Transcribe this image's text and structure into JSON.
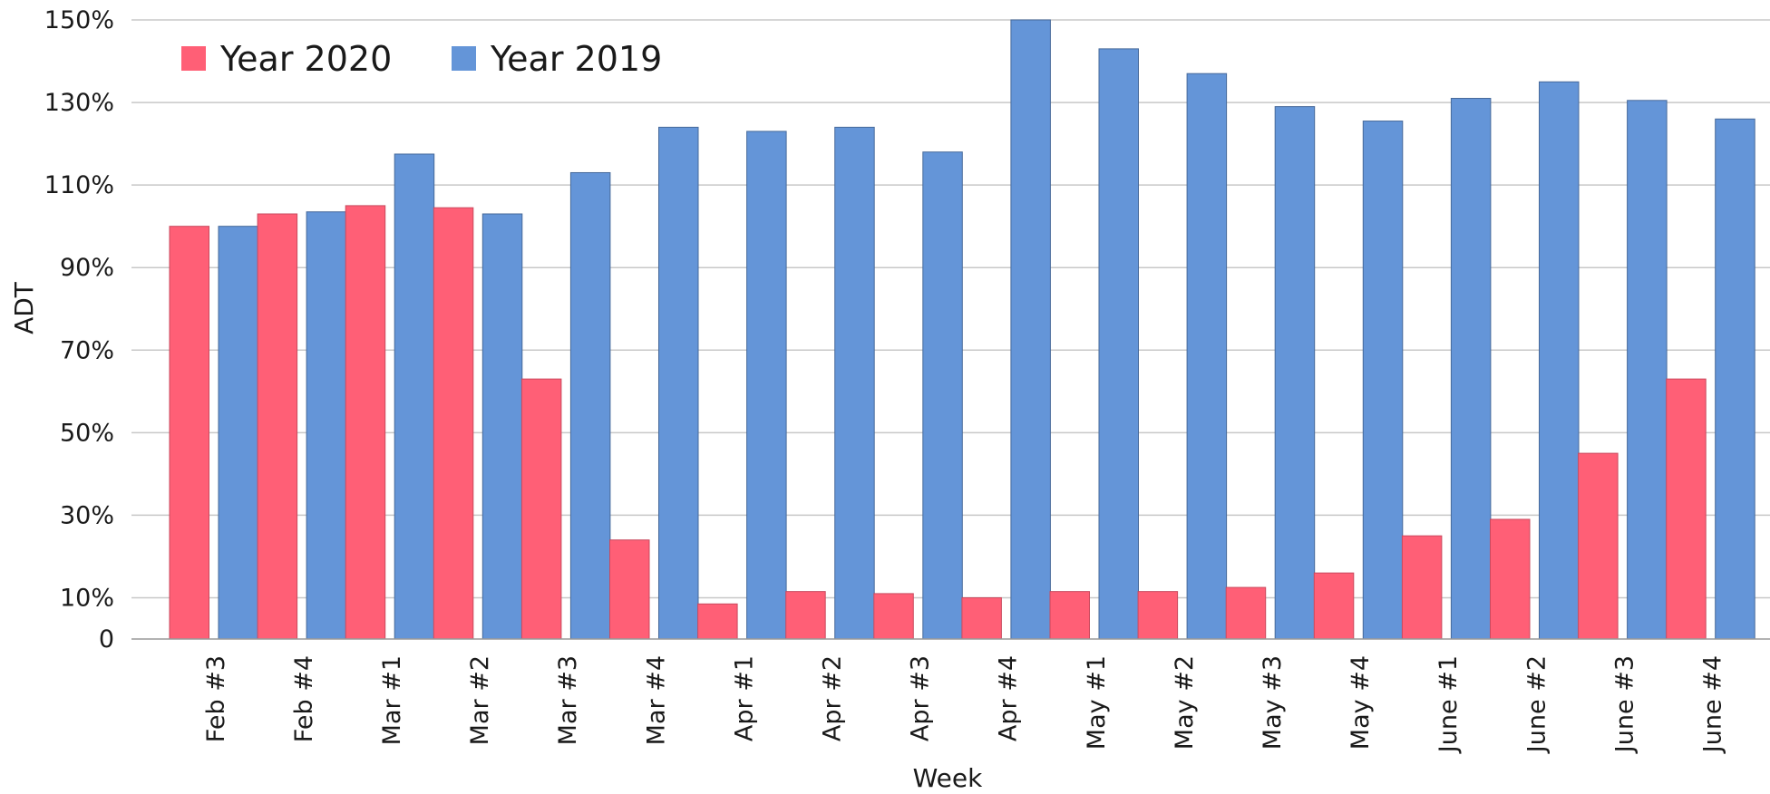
{
  "chart_data": {
    "type": "bar",
    "xlabel": "Week",
    "ylabel": "ADT",
    "ylim": [
      0,
      150
    ],
    "y_axis_unit": "%",
    "y_ticks": [
      "0",
      "10%",
      "30%",
      "50%",
      "70%",
      "90%",
      "110%",
      "130%",
      "150%"
    ],
    "y_tick_values": [
      0,
      10,
      30,
      50,
      70,
      90,
      110,
      130,
      150
    ],
    "grid": true,
    "legend_position": "top-left",
    "categories": [
      "Feb #3",
      "Feb #4",
      "Mar #1",
      "Mar #2",
      "Mar #3",
      "Mar #4",
      "Apr #1",
      "Apr #2",
      "Apr #3",
      "Apr #4",
      "May #1",
      "May #2",
      "May #3",
      "May #4",
      "June #1",
      "June #2",
      "June #3",
      "June #4"
    ],
    "series": [
      {
        "name": "Year 2020",
        "color": "#ff5f76",
        "values": [
          100,
          103,
          105,
          104.5,
          63,
          24,
          8.5,
          11.5,
          11,
          10,
          11.5,
          11.5,
          12.5,
          16,
          25,
          29,
          45,
          63
        ]
      },
      {
        "name": "Year 2019",
        "color": "#6495d8",
        "values": [
          100,
          103.5,
          117.5,
          103,
          113,
          124,
          123,
          124,
          118,
          150,
          143,
          137,
          129,
          125.5,
          131,
          135,
          130.5,
          126
        ]
      }
    ]
  }
}
